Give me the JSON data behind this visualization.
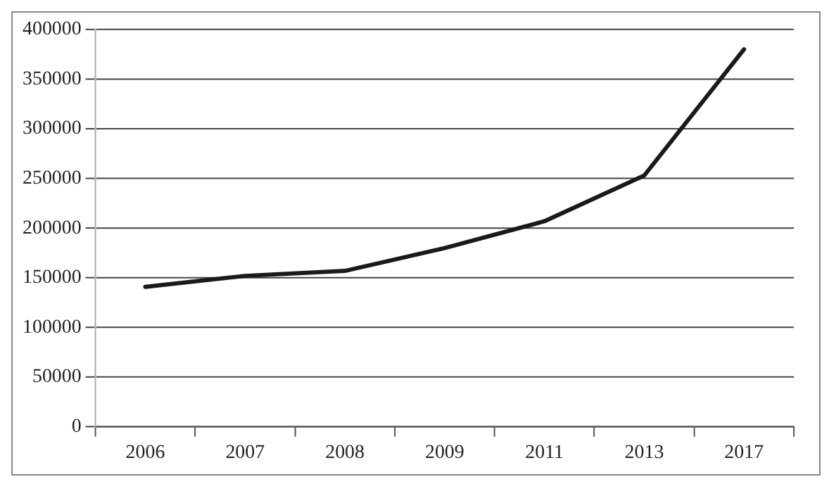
{
  "chart_data": {
    "type": "line",
    "categories": [
      "2006",
      "2007",
      "2008",
      "2009",
      "2011",
      "2013",
      "2017"
    ],
    "series": [
      {
        "color": "#1a1a1a",
        "values": [
          141000,
          152000,
          157000,
          180000,
          207000,
          253000,
          380000
        ]
      }
    ],
    "ylim": [
      0,
      400000
    ],
    "yticks": [
      0,
      50000,
      100000,
      150000,
      200000,
      250000,
      300000,
      350000,
      400000
    ],
    "grid": "y",
    "legend": false,
    "marker": "none",
    "line_style": "solid"
  }
}
